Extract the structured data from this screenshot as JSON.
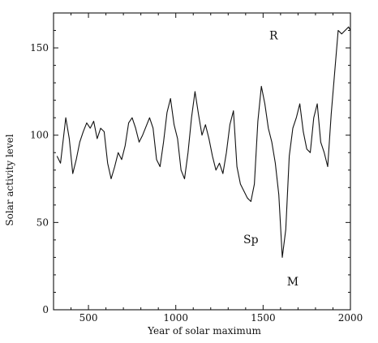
{
  "chart_data": {
    "type": "line",
    "title": "",
    "xlabel": "Year of solar maximum",
    "ylabel": "Solar activity level",
    "xlim": [
      300,
      2000
    ],
    "ylim": [
      0,
      170
    ],
    "x_ticks": [
      500,
      1000,
      1500,
      2000
    ],
    "y_ticks": [
      0,
      50,
      100,
      150
    ],
    "grid": false,
    "legend": "none",
    "line_color": "#111111",
    "annotations": [
      {
        "text": "R",
        "x": 1560,
        "y": 155
      },
      {
        "text": "Sp",
        "x": 1430,
        "y": 38
      },
      {
        "text": "M",
        "x": 1670,
        "y": 14
      }
    ],
    "series": [
      {
        "x": [
          320,
          340,
          370,
          390,
          410,
          430,
          450,
          470,
          490,
          510,
          530,
          550,
          570,
          590,
          610,
          630,
          650,
          670,
          690,
          710,
          730,
          750,
          770,
          790,
          810,
          830,
          850,
          870,
          890,
          910,
          930,
          950,
          970,
          990,
          1010,
          1030,
          1050,
          1070,
          1090,
          1110,
          1130,
          1150,
          1170,
          1190,
          1210,
          1230,
          1250,
          1270,
          1290,
          1310,
          1330,
          1350,
          1370,
          1390,
          1410,
          1430,
          1450,
          1470,
          1490,
          1510,
          1530,
          1550,
          1570,
          1590,
          1610,
          1630,
          1650,
          1670,
          1690,
          1710,
          1730,
          1750,
          1770,
          1790,
          1810,
          1830,
          1850,
          1870,
          1890,
          1910,
          1930,
          1950,
          1970,
          1990,
          2000
        ],
        "y": [
          88,
          84,
          110,
          98,
          78,
          86,
          96,
          102,
          107,
          104,
          108,
          98,
          104,
          102,
          84,
          75,
          82,
          90,
          86,
          94,
          107,
          110,
          104,
          96,
          100,
          105,
          110,
          104,
          86,
          82,
          96,
          113,
          121,
          106,
          98,
          80,
          75,
          90,
          110,
          125,
          112,
          100,
          106,
          98,
          88,
          80,
          84,
          78,
          90,
          106,
          114,
          82,
          72,
          68,
          64,
          62,
          72,
          108,
          128,
          118,
          104,
          96,
          84,
          66,
          30,
          46,
          88,
          104,
          110,
          118,
          102,
          92,
          90,
          110,
          118,
          96,
          90,
          82,
          112,
          136,
          160,
          158,
          160,
          162,
          160
        ]
      }
    ]
  }
}
